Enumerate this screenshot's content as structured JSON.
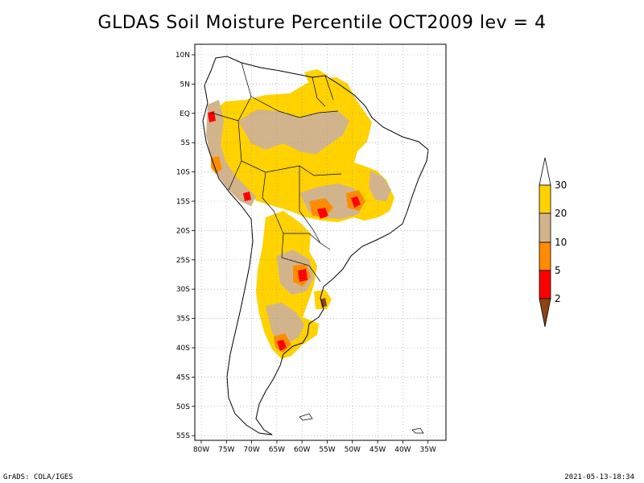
{
  "title": "GLDAS Soil Moisture Percentile OCT2009 lev = 4",
  "footer": {
    "credit": "GrADS: COLA/IGES",
    "timestamp": "2021-05-13-18:34"
  },
  "axes": {
    "lon_ticks": [
      "80W",
      "75W",
      "70W",
      "65W",
      "60W",
      "55W",
      "50W",
      "45W",
      "40W",
      "35W"
    ],
    "lat_ticks": [
      "10N",
      "5N",
      "EQ",
      "5S",
      "10S",
      "15S",
      "20S",
      "25S",
      "30S",
      "35S",
      "40S",
      "45S",
      "50S",
      "55S"
    ]
  },
  "legend": {
    "labels": [
      "30",
      "20",
      "10",
      "5",
      "2"
    ],
    "colors": {
      "above_30": "#ffffff",
      "20_30": "#ffd200",
      "10_20": "#d2b48c",
      "5_10": "#ff8c00",
      "2_5": "#ff0000",
      "below_2": "#8b4513"
    }
  },
  "chart_data": {
    "type": "map",
    "lon_range": [
      -81,
      -34
    ],
    "lat_range": [
      -56,
      12
    ],
    "grid": true,
    "legend_position": "right"
  }
}
